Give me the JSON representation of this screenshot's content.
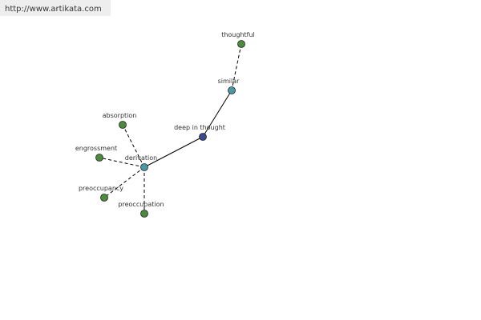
{
  "header": {
    "url": "http://www.artikata.com"
  },
  "nodes": [
    {
      "label": "thoughtful"
    },
    {
      "label": "similar"
    },
    {
      "label": "deep in thought"
    },
    {
      "label": "derivation"
    },
    {
      "label": "absorption"
    },
    {
      "label": "engrossment"
    },
    {
      "label": "preoccupancy"
    },
    {
      "label": "preoccupation"
    }
  ]
}
